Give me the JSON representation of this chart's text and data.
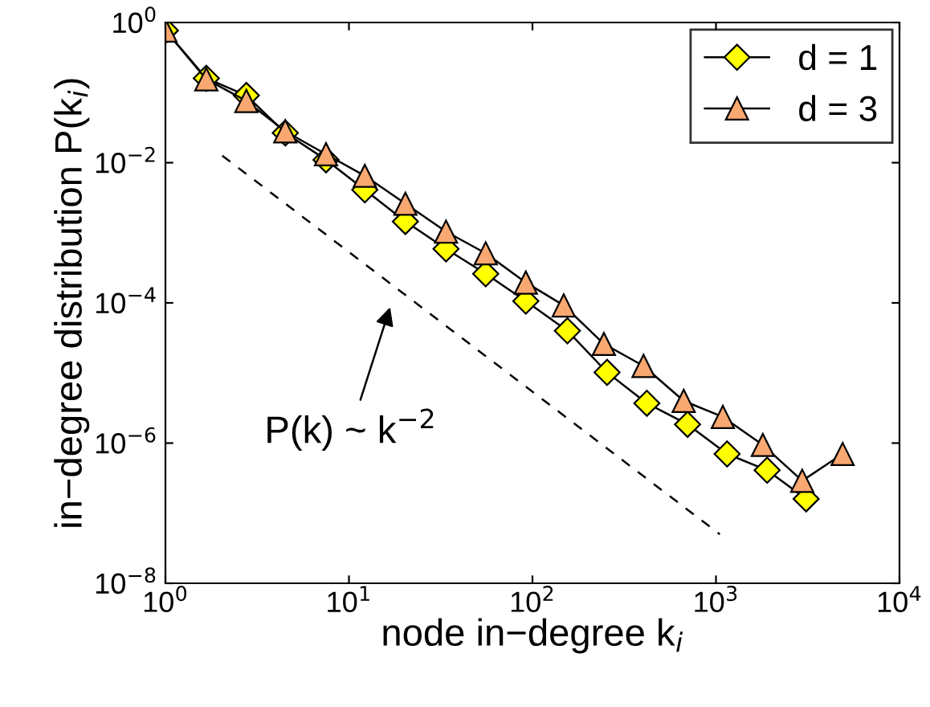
{
  "chart_data": {
    "type": "line",
    "xlabel": "node in−degree k$_{i}$",
    "ylabel": "in−degree distribution P(k$_{i}$)",
    "log": "xy",
    "xlim": [
      1,
      10000
    ],
    "ylim": [
      1e-08,
      1
    ],
    "xticks": [
      {
        "value": 1,
        "label": "10$^{0}$"
      },
      {
        "value": 10,
        "label": "10$^{1}$"
      },
      {
        "value": 100,
        "label": "10$^{2}$"
      },
      {
        "value": 1000,
        "label": "10$^{3}$"
      },
      {
        "value": 10000,
        "label": "10$^{4}$"
      }
    ],
    "yticks": [
      {
        "value": 1e-08,
        "label": "10$^{−8}$"
      },
      {
        "value": 1e-06,
        "label": "10$^{−6}$"
      },
      {
        "value": 0.0001,
        "label": "10$^{−4}$"
      },
      {
        "value": 0.01,
        "label": "10$^{−2}$"
      },
      {
        "value": 1,
        "label": "10$^{0}$"
      }
    ],
    "grid": false,
    "legend": "top right",
    "series": [
      {
        "name": "d = 1",
        "color": "#ffff00",
        "marker": "diamond",
        "x": [
          1,
          1.67,
          2.76,
          4.5,
          7.5,
          12.2,
          20.3,
          33.8,
          55.6,
          92,
          155,
          255,
          420,
          700,
          1150,
          1900,
          3100
        ],
        "values": [
          0.77,
          0.16,
          0.091,
          0.0266,
          0.011,
          0.0041,
          0.00145,
          0.00059,
          0.00026,
          0.000106,
          4e-05,
          1.02e-05,
          3.7e-06,
          1.85e-06,
          7e-07,
          4.1e-07,
          1.6e-07
        ]
      },
      {
        "name": "d = 3",
        "color": "#f8a870",
        "marker": "triangle",
        "x": [
          1,
          1.67,
          2.76,
          4.5,
          7.5,
          12.2,
          20.3,
          33.8,
          55.6,
          92,
          148,
          245,
          403,
          667,
          1090,
          1800,
          2950,
          4900
        ],
        "values": [
          0.77,
          0.155,
          0.076,
          0.028,
          0.0132,
          0.0065,
          0.0026,
          0.00104,
          0.00051,
          0.000195,
          9.2e-05,
          2.6e-05,
          1.26e-05,
          4e-06,
          2.36e-06,
          9.4e-07,
          2.9e-07,
          7e-07
        ]
      },
      {
        "type": "line",
        "color": "#000000",
        "line_style": "dashed",
        "marker": "none",
        "x": [
          2.04,
          1050
        ],
        "values": [
          0.0126,
          5e-08
        ]
      }
    ],
    "annotations": [
      "P(k) ~ k$^{−2}$"
    ]
  }
}
